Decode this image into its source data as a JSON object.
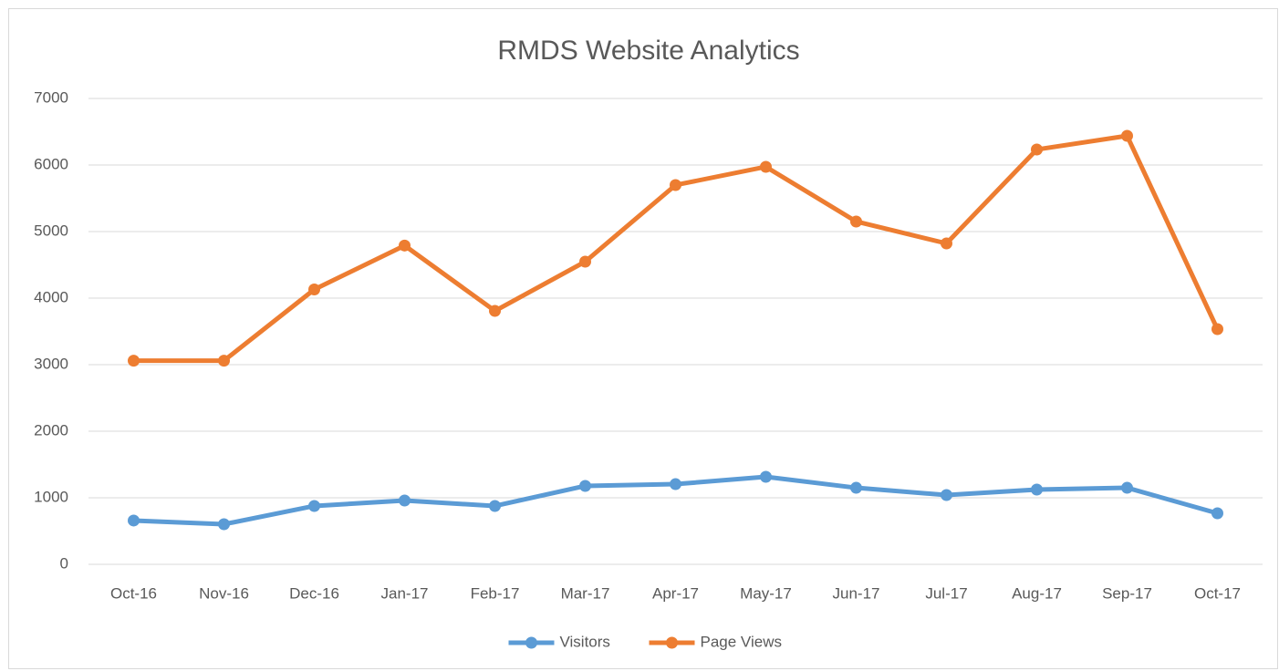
{
  "chart_data": {
    "type": "line",
    "title": "RMDS Website Analytics",
    "categories": [
      "Oct-16",
      "Nov-16",
      "Dec-16",
      "Jan-17",
      "Feb-17",
      "Mar-17",
      "Apr-17",
      "May-17",
      "Jun-17",
      "Jul-17",
      "Aug-17",
      "Sep-17",
      "Oct-17"
    ],
    "series": [
      {
        "name": "Visitors",
        "color": "#5b9bd5",
        "values": [
          658,
          603,
          877,
          959,
          877,
          1178,
          1205,
          1315,
          1150,
          1041,
          1123,
          1150,
          767
        ]
      },
      {
        "name": "Page Views",
        "color": "#ed7d31",
        "values": [
          3060,
          3060,
          4130,
          4790,
          3808,
          4548,
          5699,
          5973,
          5151,
          4822,
          6233,
          6438,
          3534
        ]
      }
    ],
    "ylim": [
      0,
      7000
    ],
    "yticks": [
      0,
      1000,
      2000,
      3000,
      4000,
      5000,
      6000,
      7000
    ],
    "grid": true,
    "legend": "bottom"
  }
}
